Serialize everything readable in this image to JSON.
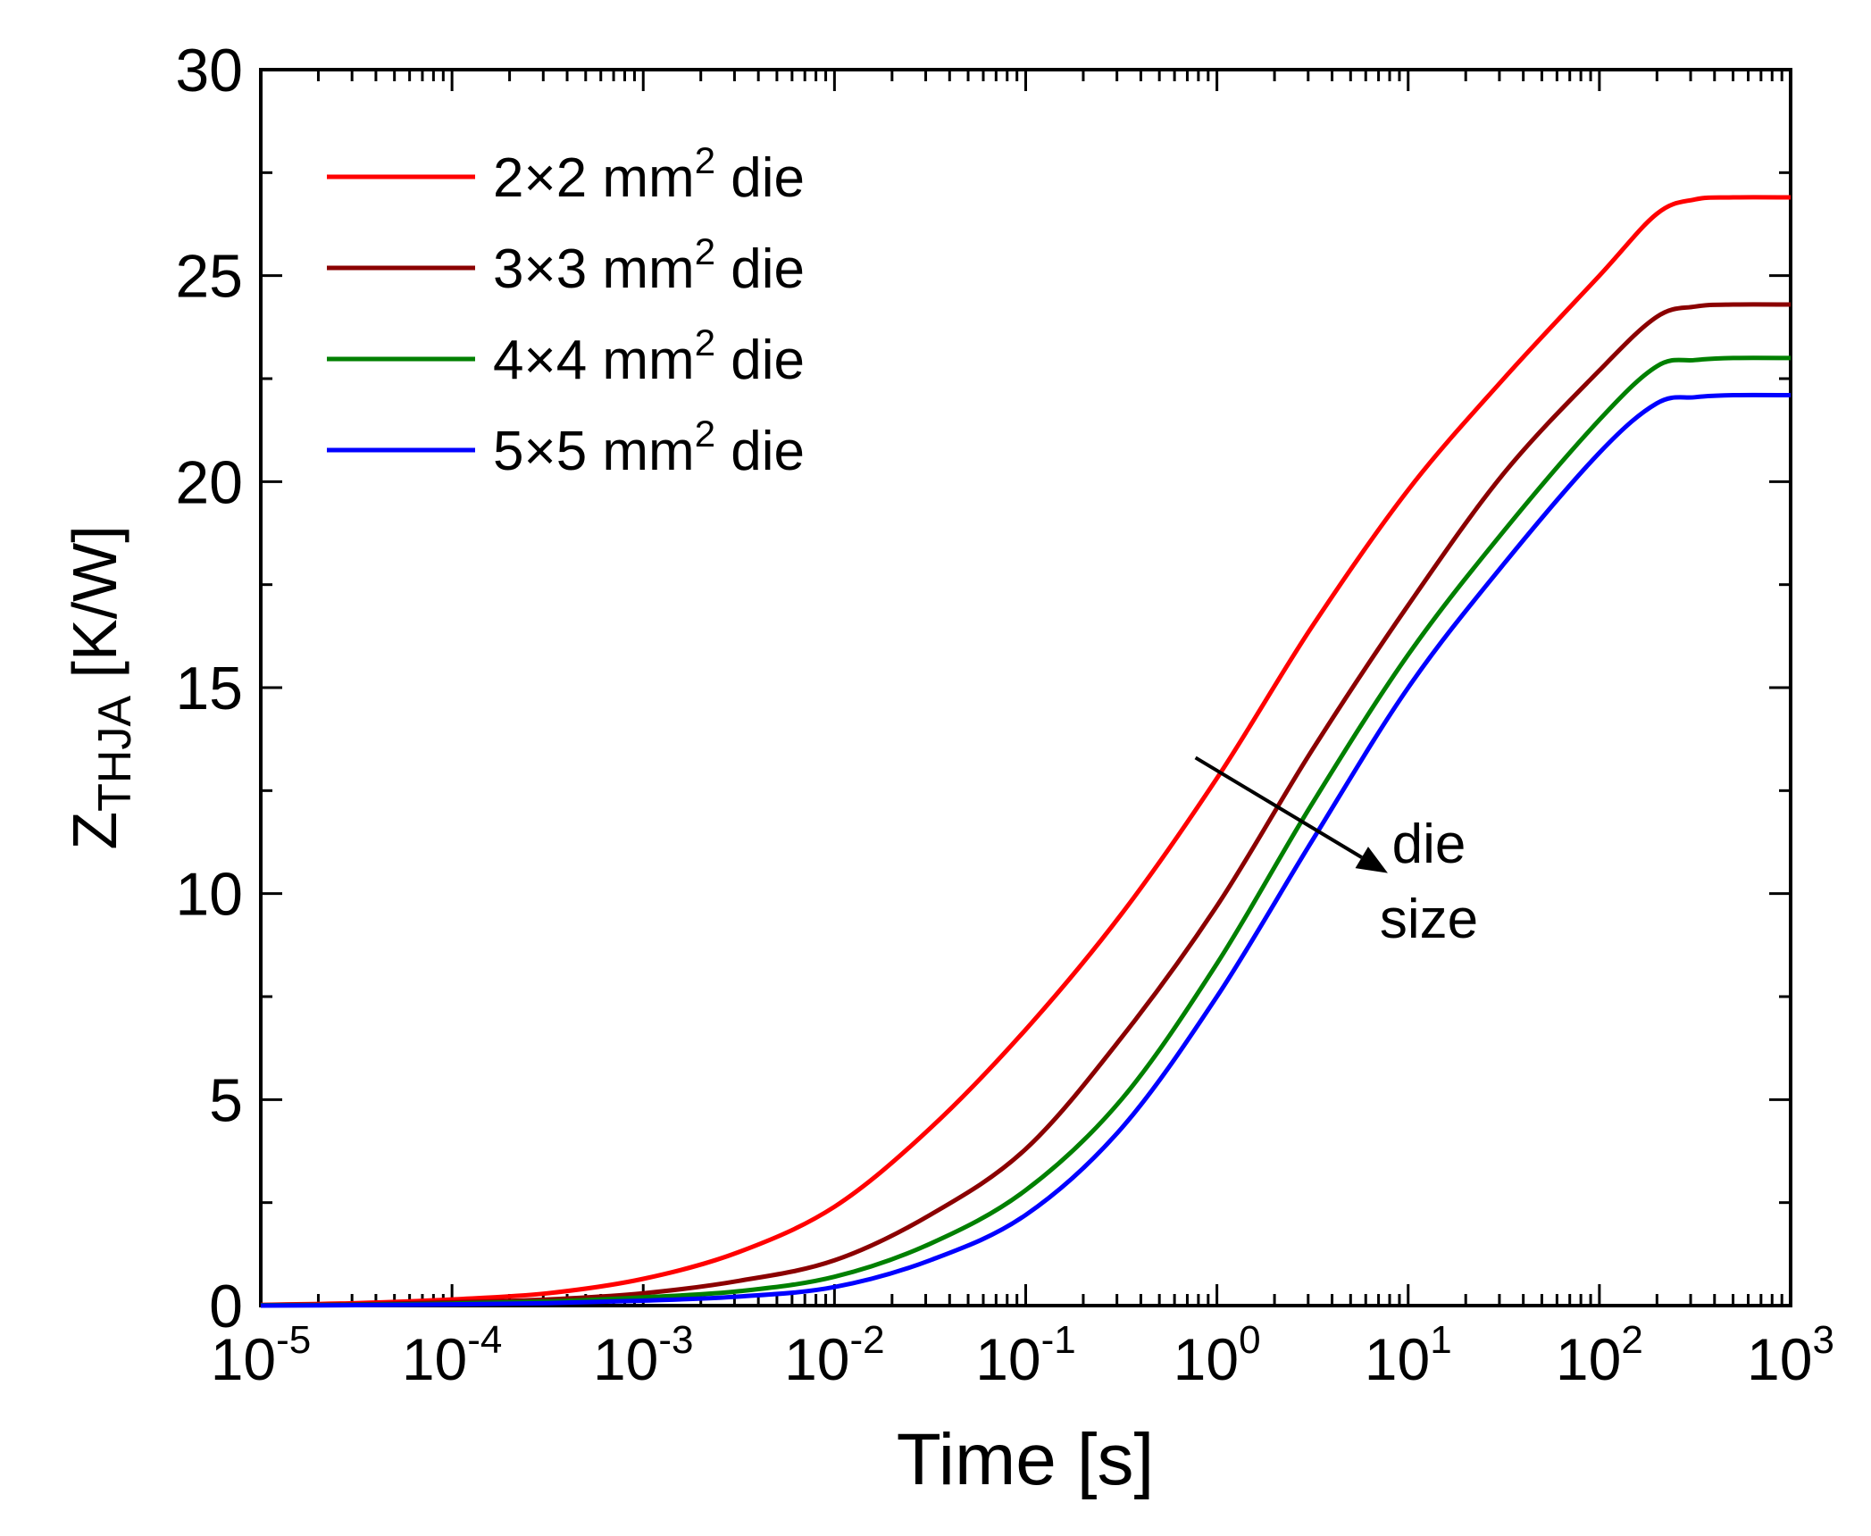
{
  "chart_data": {
    "type": "line",
    "title": "",
    "xlabel": "Time [s]",
    "ylabel": {
      "main": "Z",
      "sub": "THJA",
      "unit": " [K/W]"
    },
    "xscale": "log",
    "xlim": [
      1e-05,
      1000
    ],
    "ylim": [
      0,
      30
    ],
    "grid": false,
    "legend_position": "top-left",
    "x_ticks": [
      {
        "base": "10",
        "exp": "-5",
        "value": -5
      },
      {
        "base": "10",
        "exp": "-4",
        "value": -4
      },
      {
        "base": "10",
        "exp": "-3",
        "value": -3
      },
      {
        "base": "10",
        "exp": "-2",
        "value": -2
      },
      {
        "base": "10",
        "exp": "-1",
        "value": -1
      },
      {
        "base": "10",
        "exp": "0",
        "value": 0
      },
      {
        "base": "10",
        "exp": "1",
        "value": 1
      },
      {
        "base": "10",
        "exp": "2",
        "value": 2
      },
      {
        "base": "10",
        "exp": "3",
        "value": 3
      }
    ],
    "y_ticks": [
      0,
      5,
      10,
      15,
      20,
      25,
      30
    ],
    "x_log10": [
      -5,
      -4.5,
      -4,
      -3.5,
      -3,
      -2.5,
      -2,
      -1.5,
      -1,
      -0.5,
      0,
      0.5,
      1,
      1.5,
      2,
      2.3,
      2.5,
      2.7,
      3
    ],
    "series": [
      {
        "name_pre": "2×2 mm",
        "name_sup": "2",
        "name_post": " die",
        "color": "#ff0000",
        "values": [
          0.02,
          0.06,
          0.15,
          0.3,
          0.65,
          1.3,
          2.4,
          4.3,
          6.7,
          9.5,
          12.8,
          16.5,
          19.8,
          22.5,
          25.0,
          26.5,
          26.85,
          26.9,
          26.9
        ]
      },
      {
        "name_pre": "3×3 mm",
        "name_sup": "2",
        "name_post": " die",
        "color": "#8b0000",
        "values": [
          0.01,
          0.03,
          0.08,
          0.15,
          0.3,
          0.6,
          1.1,
          2.2,
          3.8,
          6.5,
          9.7,
          13.5,
          17.0,
          20.2,
          22.7,
          24.0,
          24.25,
          24.3,
          24.3
        ]
      },
      {
        "name_pre": "4×4 mm",
        "name_sup": "2",
        "name_post": " die",
        "color": "#008000",
        "values": [
          0.01,
          0.02,
          0.05,
          0.1,
          0.2,
          0.35,
          0.7,
          1.5,
          2.8,
          5.0,
          8.3,
          12.2,
          15.8,
          18.8,
          21.5,
          22.8,
          22.95,
          23.0,
          23.0
        ]
      },
      {
        "name_pre": "5×5 mm",
        "name_sup": "2",
        "name_post": " die",
        "color": "#0000ff",
        "values": [
          0.0,
          0.01,
          0.03,
          0.06,
          0.12,
          0.22,
          0.45,
          1.1,
          2.2,
          4.3,
          7.5,
          11.3,
          15.0,
          18.0,
          20.7,
          21.9,
          22.05,
          22.1,
          22.1
        ]
      }
    ],
    "annotation": {
      "line1": "die",
      "line2": "size",
      "arrow_from": [
        0.0,
        13.3
      ],
      "arrow_to": [
        0.8,
        10.5
      ]
    }
  }
}
